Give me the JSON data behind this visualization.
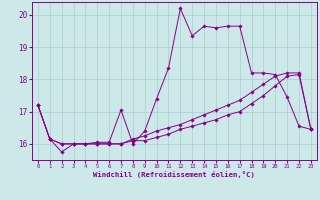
{
  "xlabel": "Windchill (Refroidissement éolien,°C)",
  "background_color": "#cce8e8",
  "grid_color": "#aacece",
  "line_color": "#880088",
  "x_ticks": [
    0,
    1,
    2,
    3,
    4,
    5,
    6,
    7,
    8,
    9,
    10,
    11,
    12,
    13,
    14,
    15,
    16,
    17,
    18,
    19,
    20,
    21,
    22,
    23
  ],
  "y_ticks": [
    16,
    17,
    18,
    19,
    20
  ],
  "ylim": [
    15.5,
    20.4
  ],
  "xlim": [
    -0.5,
    23.5
  ],
  "series1": [
    17.2,
    16.15,
    15.75,
    16.0,
    16.0,
    16.05,
    16.05,
    17.05,
    16.0,
    16.4,
    17.4,
    18.35,
    20.2,
    19.35,
    19.65,
    19.6,
    19.65,
    19.65,
    18.2,
    18.2,
    18.15,
    17.45,
    16.55,
    16.45
  ],
  "series2": [
    17.2,
    16.15,
    16.0,
    16.0,
    16.0,
    16.0,
    16.0,
    16.0,
    16.1,
    16.1,
    16.2,
    16.3,
    16.45,
    16.55,
    16.65,
    16.75,
    16.9,
    17.0,
    17.25,
    17.5,
    17.8,
    18.1,
    18.15,
    16.45
  ],
  "series3": [
    17.2,
    16.15,
    16.0,
    16.0,
    16.0,
    16.0,
    16.0,
    16.0,
    16.15,
    16.25,
    16.4,
    16.5,
    16.6,
    16.75,
    16.9,
    17.05,
    17.2,
    17.35,
    17.6,
    17.85,
    18.1,
    18.2,
    18.2,
    16.45
  ]
}
